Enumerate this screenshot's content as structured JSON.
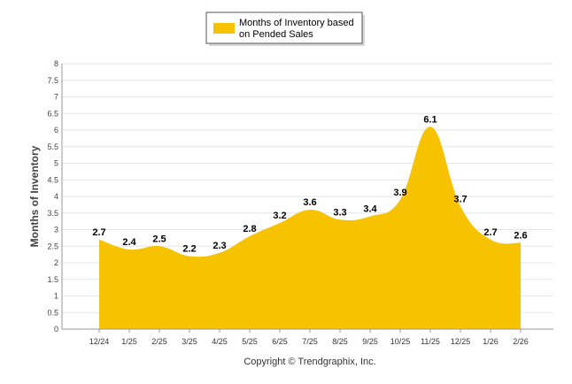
{
  "chart_data": {
    "type": "area",
    "categories": [
      "12/24",
      "1/25",
      "2/25",
      "3/25",
      "4/25",
      "5/25",
      "6/25",
      "7/25",
      "8/25",
      "9/25",
      "10/25",
      "11/25",
      "12/25",
      "1/26",
      "2/26"
    ],
    "series": [
      {
        "name": "Months of Inventory based on Pended Sales",
        "values": [
          2.7,
          2.4,
          2.5,
          2.2,
          2.3,
          2.8,
          3.2,
          3.6,
          3.3,
          3.4,
          3.9,
          6.1,
          3.7,
          2.7,
          2.6
        ]
      }
    ],
    "ylabel": "Months of Inventory",
    "xlabel": "",
    "ylim": [
      0,
      8
    ],
    "yticks": [
      "0",
      "0.5",
      "1",
      "1.5",
      "2",
      "2.5",
      "3",
      "3.5",
      "4",
      "4.5",
      "5",
      "5.5",
      "6",
      "6.5",
      "7",
      "7.5",
      "8"
    ],
    "legend": {
      "line1": "Months of Inventory based",
      "line2": "on Pended Sales",
      "position": "top-center"
    },
    "grid": true
  },
  "colors": {
    "area": "#F7C300",
    "grid": "#e6e6e6",
    "axis": "#999999"
  },
  "footer": {
    "copyright": "Copyright © Trendgraphix, Inc."
  }
}
